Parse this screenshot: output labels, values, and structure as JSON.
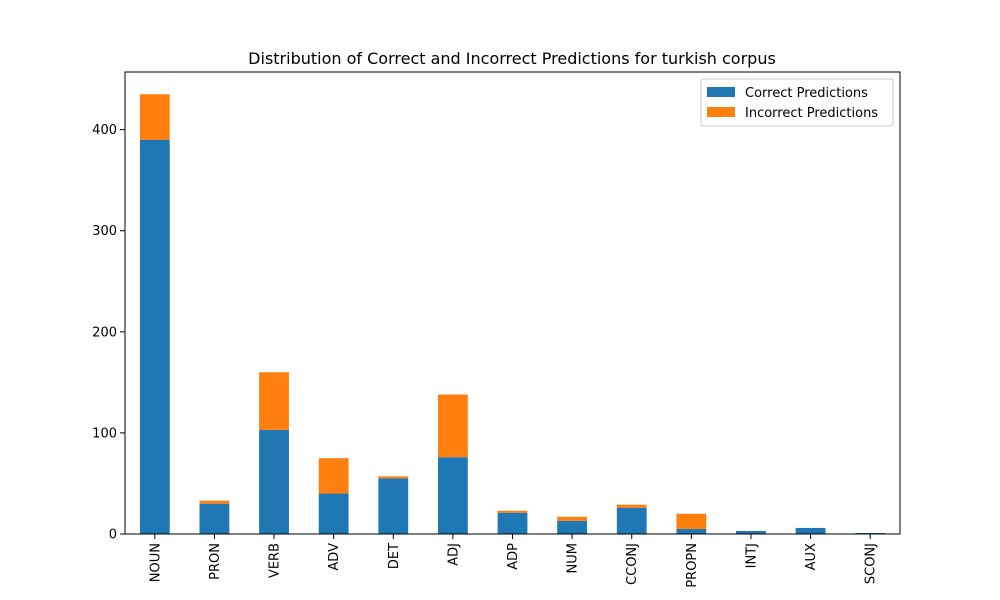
{
  "chart_data": {
    "type": "bar",
    "stacked": true,
    "title": "Distribution of Correct and Incorrect Predictions for turkish corpus",
    "xlabel": "",
    "ylabel": "",
    "ylim": [
      0,
      457
    ],
    "yticks": [
      0,
      100,
      200,
      300,
      400
    ],
    "categories": [
      "NOUN",
      "PRON",
      "VERB",
      "ADV",
      "DET",
      "ADJ",
      "ADP",
      "NUM",
      "CCONJ",
      "PROPN",
      "INTJ",
      "AUX",
      "SCONJ"
    ],
    "series": [
      {
        "name": "Correct Predictions",
        "color": "#1f77b4",
        "values": [
          390,
          30,
          103,
          40,
          55,
          76,
          21,
          13,
          26,
          5,
          3,
          6,
          1
        ]
      },
      {
        "name": "Incorrect Predictions",
        "color": "#ff7f0e",
        "values": [
          45,
          3,
          57,
          35,
          2,
          62,
          2,
          4,
          3,
          15,
          0,
          0,
          0
        ]
      }
    ],
    "legend": "top-right",
    "grid": false
  }
}
